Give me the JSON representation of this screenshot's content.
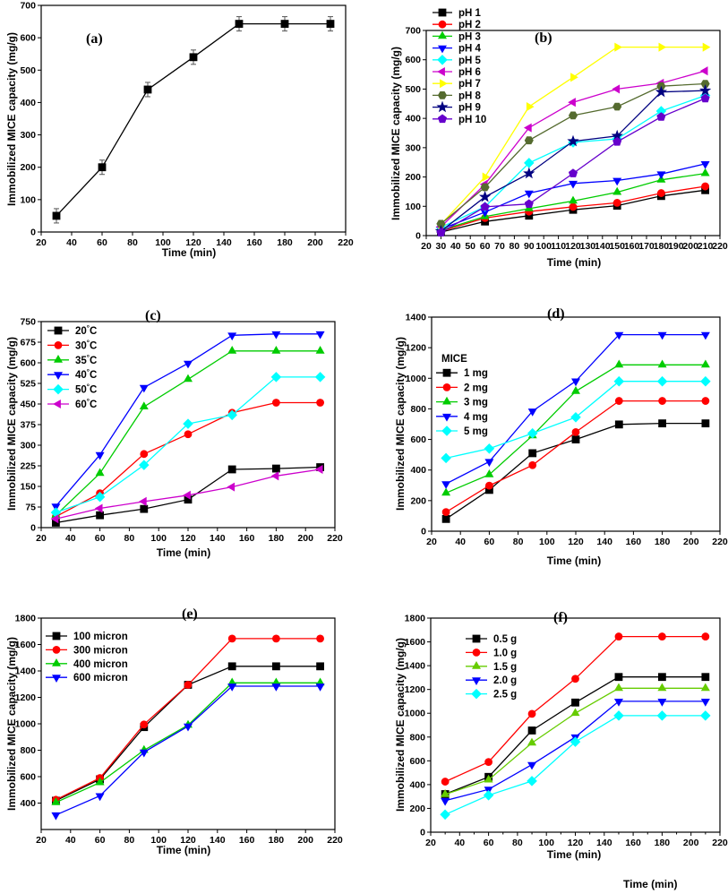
{
  "chart_data": [
    {
      "type": "line",
      "panel_label": "(a)",
      "xlabel": "Time (min)",
      "ylabel": "Immobilized MICE capacity (mg/g)",
      "xlim": [
        20,
        220
      ],
      "ylim": [
        0,
        700
      ],
      "xticks": [
        20,
        40,
        60,
        80,
        100,
        120,
        140,
        160,
        180,
        200,
        220
      ],
      "yticks": [
        0,
        100,
        200,
        300,
        400,
        500,
        600,
        700
      ],
      "x": [
        30,
        60,
        90,
        120,
        150,
        180,
        210
      ],
      "series": [
        {
          "name": "",
          "color": "#000000",
          "marker": "square",
          "error_bars": true,
          "values": [
            50,
            200,
            440,
            540,
            643,
            643,
            643
          ]
        }
      ]
    },
    {
      "type": "line",
      "panel_label": "(b)",
      "xlabel": "Time (min)",
      "ylabel": "Immobilized MICE capacity (mg/g)",
      "xlim": [
        20,
        220
      ],
      "ylim": [
        0,
        700
      ],
      "xticks": [
        20,
        30,
        40,
        50,
        60,
        70,
        80,
        90,
        100,
        110,
        120,
        130,
        140,
        150,
        160,
        170,
        180,
        190,
        200,
        210,
        220
      ],
      "xtick_labels": [
        "20",
        "30",
        "40",
        "50",
        "60",
        "70",
        "80",
        "90",
        "100",
        "110",
        "120",
        "130",
        "140",
        "150",
        "160",
        "170",
        "180",
        "190",
        "200",
        "210",
        "220"
      ],
      "yticks": [
        0,
        100,
        200,
        300,
        400,
        500,
        600,
        700
      ],
      "x": [
        30,
        60,
        90,
        120,
        150,
        180,
        210
      ],
      "series": [
        {
          "name": "pH 1",
          "color": "#000000",
          "marker": "square",
          "values": [
            12,
            48,
            68,
            88,
            102,
            135,
            155
          ]
        },
        {
          "name": "pH 2",
          "color": "#ff0000",
          "marker": "circle",
          "values": [
            15,
            60,
            82,
            98,
            112,
            145,
            168
          ]
        },
        {
          "name": "pH 3",
          "color": "#00cc00",
          "marker": "triangle-up",
          "values": [
            18,
            65,
            92,
            118,
            148,
            190,
            212
          ]
        },
        {
          "name": "pH 4",
          "color": "#0000ff",
          "marker": "triangle-down",
          "values": [
            22,
            80,
            145,
            178,
            188,
            210,
            245
          ]
        },
        {
          "name": "pH 5",
          "color": "#00ffff",
          "marker": "diamond",
          "values": [
            28,
            98,
            248,
            318,
            330,
            425,
            478
          ]
        },
        {
          "name": "pH 6",
          "color": "#cc00cc",
          "marker": "triangle-left",
          "values": [
            30,
            175,
            368,
            455,
            500,
            520,
            562
          ]
        },
        {
          "name": "pH 7",
          "color": "#ffff00",
          "marker": "triangle-right",
          "values": [
            38,
            200,
            440,
            540,
            643,
            643,
            643
          ]
        },
        {
          "name": "pH 8",
          "color": "#556b2f",
          "marker": "hexagon",
          "values": [
            40,
            165,
            325,
            410,
            440,
            510,
            518
          ]
        },
        {
          "name": "pH 9",
          "color": "#000080",
          "marker": "star",
          "values": [
            15,
            132,
            212,
            322,
            340,
            490,
            495
          ]
        },
        {
          "name": "pH 10",
          "color": "#6600cc",
          "marker": "pentagon",
          "values": [
            10,
            98,
            108,
            212,
            320,
            405,
            468
          ]
        }
      ]
    },
    {
      "type": "line",
      "panel_label": "(c)",
      "xlabel": "Time (min)",
      "ylabel": "Immobilized MICE capacity (mg/g)",
      "xlim": [
        20,
        220
      ],
      "ylim": [
        0,
        750
      ],
      "xticks": [
        20,
        40,
        60,
        80,
        100,
        120,
        140,
        160,
        180,
        200,
        220
      ],
      "yticks": [
        0,
        75,
        150,
        225,
        300,
        375,
        450,
        525,
        600,
        675,
        750
      ],
      "x": [
        30,
        60,
        90,
        120,
        150,
        180,
        210
      ],
      "series": [
        {
          "name": "20",
          "unit": "°C",
          "color": "#000000",
          "marker": "square",
          "values": [
            18,
            45,
            68,
            102,
            212,
            215,
            220
          ]
        },
        {
          "name": "30",
          "unit": "°C",
          "color": "#ff0000",
          "marker": "circle",
          "values": [
            40,
            125,
            268,
            340,
            418,
            455,
            455
          ]
        },
        {
          "name": "35",
          "unit": "°C",
          "color": "#00cc00",
          "marker": "triangle-up",
          "values": [
            45,
            198,
            440,
            540,
            643,
            643,
            643
          ]
        },
        {
          "name": "40",
          "unit": "°C",
          "color": "#0000ff",
          "marker": "triangle-down",
          "values": [
            78,
            265,
            510,
            598,
            700,
            705,
            705
          ]
        },
        {
          "name": "50",
          "unit": "°C",
          "color": "#00ffff",
          "marker": "diamond",
          "values": [
            55,
            112,
            228,
            378,
            410,
            548,
            548
          ]
        },
        {
          "name": "60",
          "unit": "°C",
          "color": "#cc00cc",
          "marker": "triangle-left",
          "values": [
            32,
            70,
            95,
            118,
            148,
            188,
            212
          ]
        }
      ]
    },
    {
      "type": "line",
      "panel_label": "(d)",
      "xlabel": "Time (min)",
      "ylabel": "Immobilized MICE capacity (mg/g)",
      "legend_title": "MICE",
      "xlim": [
        20,
        220
      ],
      "ylim": [
        0,
        1400
      ],
      "xticks": [
        20,
        40,
        60,
        80,
        100,
        120,
        140,
        160,
        180,
        200,
        220
      ],
      "yticks": [
        0,
        200,
        400,
        600,
        800,
        1000,
        1200,
        1400
      ],
      "x": [
        30,
        60,
        90,
        120,
        150,
        180,
        210
      ],
      "series": [
        {
          "name": "1 mg",
          "color": "#000000",
          "marker": "square",
          "values": [
            80,
            270,
            510,
            600,
            698,
            705,
            705
          ]
        },
        {
          "name": "2 mg",
          "color": "#ff0000",
          "marker": "circle",
          "values": [
            125,
            298,
            432,
            648,
            852,
            852,
            852
          ]
        },
        {
          "name": "3 mg",
          "color": "#00cc00",
          "marker": "triangle-up",
          "values": [
            250,
            370,
            625,
            915,
            1088,
            1088,
            1088
          ]
        },
        {
          "name": "4 mg",
          "color": "#0000ff",
          "marker": "triangle-down",
          "values": [
            310,
            455,
            785,
            982,
            1285,
            1285,
            1285
          ]
        },
        {
          "name": "5 mg",
          "color": "#00ffff",
          "marker": "diamond",
          "values": [
            478,
            540,
            640,
            745,
            980,
            980,
            980
          ]
        }
      ]
    },
    {
      "type": "line",
      "panel_label": "(e)",
      "xlabel": "Time (min)",
      "ylabel": "Immobilized MICE capacity (mg/g)",
      "xlim": [
        20,
        220
      ],
      "ylim": [
        200,
        1800
      ],
      "xticks": [
        20,
        40,
        60,
        80,
        100,
        120,
        140,
        160,
        180,
        200,
        220
      ],
      "yticks": [
        400,
        600,
        800,
        1000,
        1200,
        1400,
        1600,
        1800
      ],
      "x": [
        30,
        60,
        90,
        120,
        150,
        180,
        210
      ],
      "series": [
        {
          "name": "100 micron",
          "color": "#000000",
          "marker": "square",
          "values": [
            418,
            580,
            975,
            1295,
            1435,
            1435,
            1435
          ]
        },
        {
          "name": "300 micron",
          "color": "#ff0000",
          "marker": "circle",
          "values": [
            425,
            590,
            995,
            1295,
            1645,
            1645,
            1645
          ]
        },
        {
          "name": "400 micron",
          "color": "#00cc00",
          "marker": "triangle-up",
          "values": [
            405,
            555,
            800,
            990,
            1310,
            1310,
            1310
          ]
        },
        {
          "name": "600 micron",
          "color": "#0000ff",
          "marker": "triangle-down",
          "values": [
            310,
            455,
            785,
            982,
            1285,
            1285,
            1285
          ]
        }
      ]
    },
    {
      "type": "line",
      "panel_label": "(f)",
      "xlabel": "Time (min)",
      "ylabel": "Immobilized MICE capacity (mg/g)",
      "xlim": [
        20,
        220
      ],
      "ylim": [
        0,
        1800
      ],
      "xticks": [
        20,
        30,
        40,
        50,
        60,
        70,
        80,
        90,
        100,
        110,
        120,
        130,
        140,
        150,
        160,
        170,
        180,
        190,
        200,
        210,
        220
      ],
      "xtick_labels": [
        "20",
        "",
        "40",
        "",
        "60",
        "",
        "80",
        "",
        "100",
        "",
        "120",
        "",
        "140",
        "",
        "160",
        "",
        "180",
        "",
        "200",
        "",
        "220"
      ],
      "yticks": [
        0,
        200,
        400,
        600,
        800,
        1000,
        1200,
        1400,
        1600,
        1800
      ],
      "x": [
        30,
        60,
        90,
        120,
        150,
        180,
        210
      ],
      "series": [
        {
          "name": "0.5 g",
          "color": "#000000",
          "marker": "square",
          "values": [
            320,
            465,
            855,
            1090,
            1305,
            1305,
            1305
          ]
        },
        {
          "name": "1.0 g",
          "color": "#ff0000",
          "marker": "circle",
          "values": [
            425,
            590,
            995,
            1290,
            1645,
            1645,
            1645
          ]
        },
        {
          "name": "1.5 g",
          "color": "#66cc00",
          "marker": "triangle-up",
          "values": [
            318,
            440,
            750,
            1000,
            1210,
            1210,
            1210
          ]
        },
        {
          "name": "2.0 g",
          "color": "#0000ff",
          "marker": "triangle-down",
          "values": [
            265,
            360,
            568,
            800,
            1100,
            1100,
            1100
          ]
        },
        {
          "name": "2.5 g",
          "color": "#00ffff",
          "marker": "diamond",
          "values": [
            148,
            310,
            430,
            760,
            980,
            980,
            980
          ]
        }
      ]
    }
  ],
  "footer_label": "Time (min)"
}
